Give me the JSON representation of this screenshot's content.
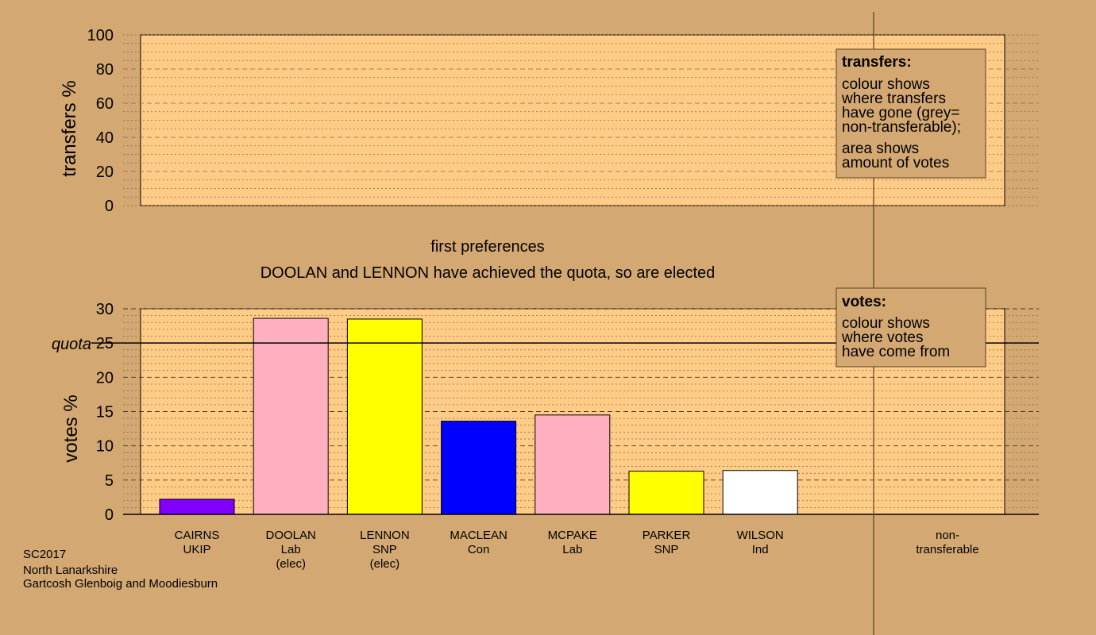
{
  "chart_data": [
    {
      "type": "bar",
      "ylabel": "transfers %",
      "ylim": [
        0,
        100
      ],
      "yticks": [
        "0",
        "20",
        "40",
        "60",
        "80",
        "100"
      ],
      "grid": true,
      "values": [],
      "legend": {
        "title": "transfers:",
        "lines": [
          "colour shows",
          "where transfers",
          "have gone (grey=",
          "non-transferable);"
        ],
        "lines2": [
          "area shows",
          "amount of votes"
        ]
      }
    },
    {
      "type": "bar",
      "title": "first preferences",
      "subtitle": "DOOLAN and LENNON have achieved the quota, so are elected",
      "ylabel": "votes %",
      "ylim": [
        0,
        30
      ],
      "yticks": [
        "0",
        "5",
        "10",
        "15",
        "20",
        "25",
        "30"
      ],
      "quota": 25,
      "quota_label": "quota",
      "grid": true,
      "categories": [
        {
          "name": "CAIRNS",
          "party": "UKIP",
          "note": ""
        },
        {
          "name": "DOOLAN",
          "party": "Lab",
          "note": "(elec)"
        },
        {
          "name": "LENNON",
          "party": "SNP",
          "note": "(elec)"
        },
        {
          "name": "MACLEAN",
          "party": "Con",
          "note": ""
        },
        {
          "name": "MCPAKE",
          "party": "Lab",
          "note": ""
        },
        {
          "name": "PARKER",
          "party": "SNP",
          "note": ""
        },
        {
          "name": "WILSON",
          "party": "Ind",
          "note": ""
        }
      ],
      "values": [
        2.2,
        28.6,
        28.5,
        13.6,
        14.5,
        6.3,
        6.4
      ],
      "colors": [
        "#8000ff",
        "#ffb0c0",
        "#ffff00",
        "#0000ff",
        "#ffb0c0",
        "#ffff00",
        "#ffffff"
      ],
      "nontransferable": {
        "line1": "non-",
        "line2": "transferable"
      },
      "legend": {
        "title": "votes:",
        "lines": [
          "colour shows",
          "where votes",
          "have come from"
        ]
      }
    }
  ],
  "footer": {
    "line1": "SC2017",
    "line2": "North Lanarkshire",
    "line3": "Gartcosh Glenboig and Moodiesburn"
  }
}
